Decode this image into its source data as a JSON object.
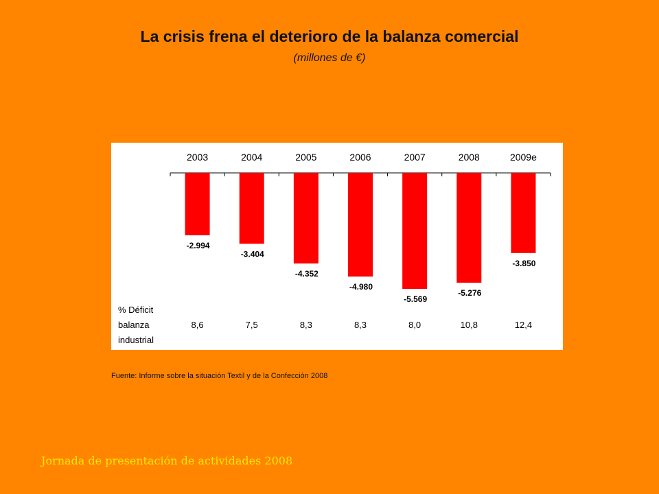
{
  "title": "La crisis frena el deterioro de la balanza comercial",
  "subtitle": "(millones de €)",
  "source": "Fuente: Informe sobre la situación Textil y de la Confección 2008",
  "footer": "Jornada de presentación de actividades 2008",
  "colors": {
    "background": "#FF8500",
    "bar": "#FF0000",
    "panel": "#FFFFFF",
    "footer_text": "#FFE800"
  },
  "chart_data": {
    "type": "bar",
    "categories": [
      "2003",
      "2004",
      "2005",
      "2006",
      "2007",
      "2008",
      "2009e"
    ],
    "values": [
      -2994,
      -3404,
      -4352,
      -4980,
      -5569,
      -5276,
      -3850
    ],
    "data_labels": [
      "-2.994",
      "-3.404",
      "-4.352",
      "-4.980",
      "-5.569",
      "-5.276",
      "-3.850"
    ],
    "ylim": [
      -5800,
      0
    ],
    "grid": false,
    "legend": "none",
    "table": {
      "row_label": [
        "% Déficit",
        "balanza",
        "industrial"
      ],
      "values": [
        "8,6",
        "7,5",
        "8,3",
        "8,3",
        "8,0",
        "10,8",
        "12,4"
      ]
    }
  }
}
